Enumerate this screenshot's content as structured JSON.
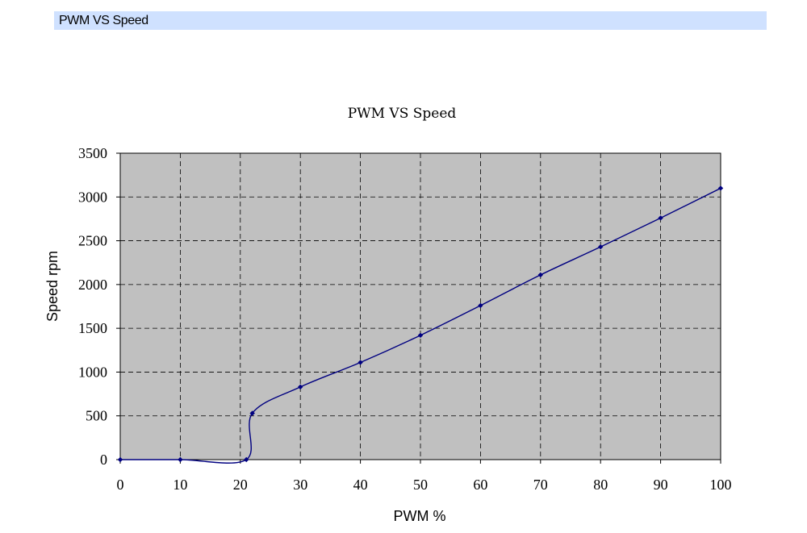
{
  "header": {
    "title": "PWM VS Speed"
  },
  "chart_data": {
    "type": "line",
    "title": "PWM VS Speed",
    "xlabel": "PWM %",
    "ylabel": "Speed rpm",
    "xlim": [
      0,
      100
    ],
    "ylim": [
      0,
      3500
    ],
    "xticks": [
      0,
      10,
      20,
      30,
      40,
      50,
      60,
      70,
      80,
      90,
      100
    ],
    "yticks": [
      0,
      500,
      1000,
      1500,
      2000,
      2500,
      3000,
      3500
    ],
    "grid": true,
    "legend": "none",
    "plot_background": "#c0c0c0",
    "line_color": "#000080",
    "marker_color": "#000080",
    "smoothed": true,
    "series": [
      {
        "x": [
          0,
          10,
          21,
          22,
          30,
          40,
          50,
          60,
          70,
          80,
          90,
          100
        ],
        "y": [
          0,
          0,
          0,
          530,
          830,
          1110,
          1420,
          1760,
          2110,
          2430,
          2760,
          3100
        ]
      }
    ]
  }
}
